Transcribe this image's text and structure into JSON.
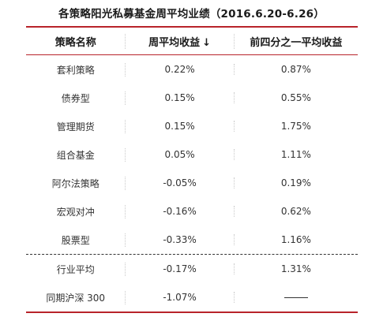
{
  "title": "各策略阳光私募基金周平均业绩（2016.6.20-6.26）",
  "headers": {
    "strategy": "策略名称",
    "weekly_return": "周平均收益",
    "weekly_sort_icon": "↓",
    "top_quartile": "前四分之一平均收益"
  },
  "rows": [
    {
      "strategy": "套利策略",
      "weekly": "0.22%",
      "top_quartile": "0.87%"
    },
    {
      "strategy": "债券型",
      "weekly": "0.15%",
      "top_quartile": "0.55%"
    },
    {
      "strategy": "管理期货",
      "weekly": "0.15%",
      "top_quartile": "1.75%"
    },
    {
      "strategy": "组合基金",
      "weekly": "0.05%",
      "top_quartile": "1.11%"
    },
    {
      "strategy": "阿尔法策略",
      "weekly": "-0.05%",
      "top_quartile": "0.19%"
    },
    {
      "strategy": "宏观对冲",
      "weekly": "-0.16%",
      "top_quartile": "0.62%"
    },
    {
      "strategy": "股票型",
      "weekly": "-0.33%",
      "top_quartile": "1.16%"
    }
  ],
  "summary_rows": [
    {
      "strategy": "行业平均",
      "weekly": "-0.17%",
      "top_quartile": "1.31%"
    },
    {
      "strategy": "同期沪深 300",
      "weekly": "-1.07%",
      "top_quartile": ""
    }
  ],
  "colors": {
    "rule": "#b8232a",
    "text": "#333333"
  }
}
